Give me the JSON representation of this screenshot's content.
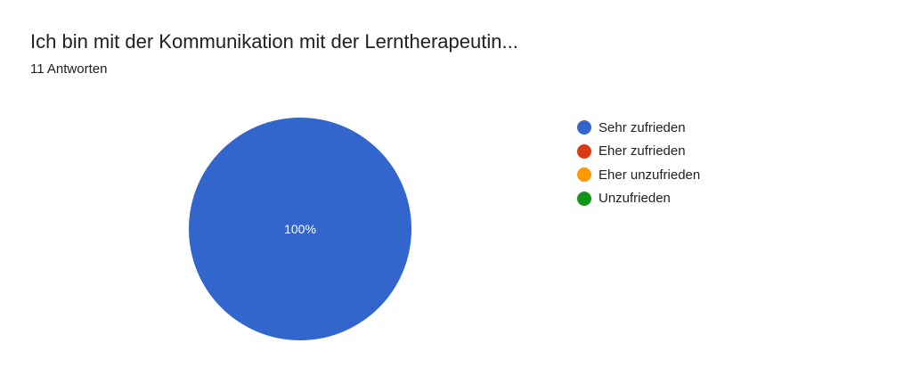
{
  "title": "Ich bin mit der Kommunikation mit der Lerntherapeutin...",
  "subtitle": "11 Antworten",
  "chart_data": {
    "type": "pie",
    "categories": [
      "Sehr zufrieden",
      "Eher zufrieden",
      "Eher unzufrieden",
      "Unzufrieden"
    ],
    "values": [
      100,
      0,
      0,
      0
    ],
    "data_labels": [
      "100%",
      "",
      "",
      ""
    ],
    "colors": [
      "#3366cc",
      "#dc3912",
      "#ff9900",
      "#109618"
    ],
    "legend_position": "right"
  }
}
